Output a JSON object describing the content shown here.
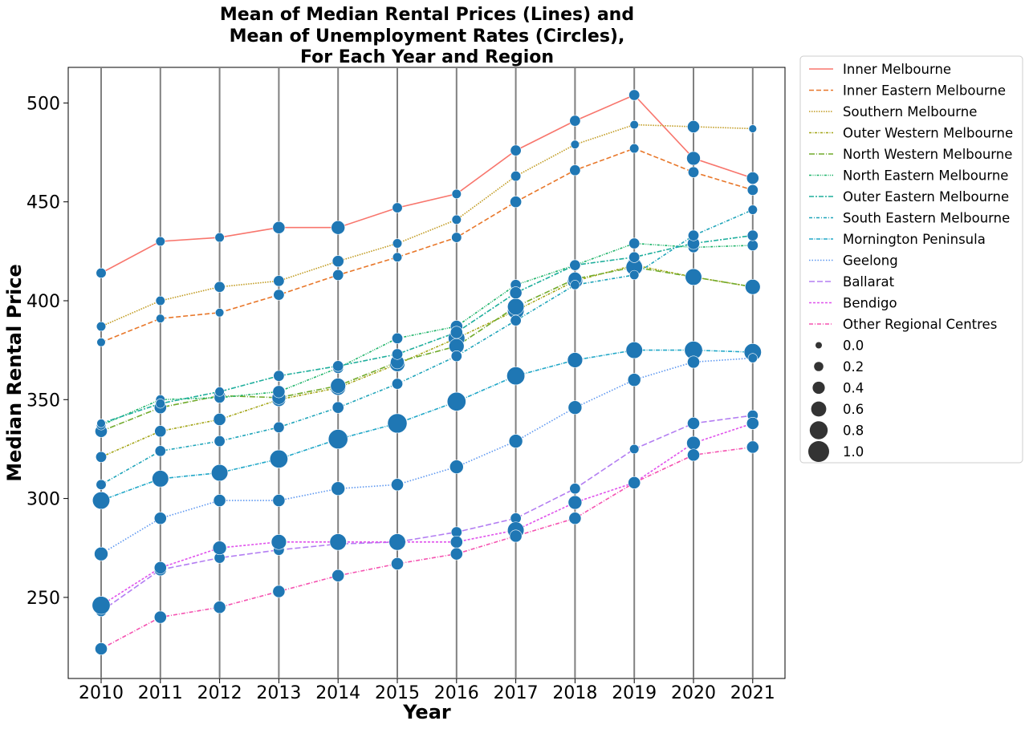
{
  "chart_data": {
    "type": "line",
    "title_lines": [
      "Mean of Median Rental Prices (Lines) and",
      "Mean of Unemployment Rates (Circles),",
      "For Each Year and Region"
    ],
    "xlabel": "Year",
    "ylabel": "Median Rental Price",
    "x": [
      2010,
      2011,
      2012,
      2013,
      2014,
      2015,
      2016,
      2017,
      2018,
      2019,
      2020,
      2021
    ],
    "x_tick_labels": [
      "2010",
      "2011",
      "2012",
      "2013",
      "2014",
      "2015",
      "2016",
      "2017",
      "2018",
      "2019",
      "2020",
      "2021"
    ],
    "y_ticks": [
      250,
      300,
      350,
      400,
      450,
      500
    ],
    "y_tick_labels": [
      "250",
      "300",
      "350",
      "400",
      "450",
      "500"
    ],
    "ylim": [
      209,
      518
    ],
    "vertical_year_gridlines": true,
    "marker_color": "#1f77b4",
    "legend_position": "outside-right",
    "series": [
      {
        "name": "Inner Melbourne",
        "color": "#f8766d",
        "dash": "none",
        "values": [
          414,
          430,
          432,
          437,
          437,
          447,
          454,
          476,
          491,
          504,
          472,
          462
        ],
        "rates": [
          0.25,
          0.2,
          0.2,
          0.4,
          0.5,
          0.25,
          0.2,
          0.3,
          0.3,
          0.3,
          0.5,
          0.4
        ]
      },
      {
        "name": "Inner Eastern Melbourne",
        "color": "#e8772a",
        "dash": "6,3",
        "values": [
          379,
          391,
          394,
          403,
          413,
          422,
          432,
          450,
          466,
          477,
          465,
          456
        ],
        "rates": [
          0.15,
          0.15,
          0.15,
          0.3,
          0.3,
          0.2,
          0.25,
          0.35,
          0.3,
          0.2,
          0.3,
          0.3
        ]
      },
      {
        "name": "Southern Melbourne",
        "color": "#c09a1f",
        "dash": "1.5,1.5",
        "values": [
          387,
          400,
          407,
          410,
          420,
          429,
          441,
          463,
          479,
          489,
          488,
          487
        ],
        "rates": [
          0.2,
          0.2,
          0.3,
          0.3,
          0.35,
          0.2,
          0.2,
          0.25,
          0.15,
          0.15,
          0.4,
          0.1
        ]
      },
      {
        "name": "Outer Western Melbourne",
        "color": "#a3a517",
        "dash": "3,1.5,1,1.5",
        "values": [
          321,
          334,
          340,
          350,
          356,
          368,
          381,
          395,
          410,
          418,
          412,
          407
        ],
        "rates": [
          0.3,
          0.35,
          0.4,
          0.5,
          0.6,
          0.6,
          0.7,
          0.7,
          0.6,
          0.6,
          0.7,
          0.6
        ]
      },
      {
        "name": "North Western Melbourne",
        "color": "#71ab2c",
        "dash": "7,2,1,2",
        "values": [
          334,
          346,
          352,
          351,
          357,
          369,
          377,
          397,
          411,
          417,
          412,
          407
        ],
        "rates": [
          0.4,
          0.4,
          0.35,
          0.5,
          0.6,
          0.5,
          0.6,
          0.7,
          0.5,
          0.7,
          0.7,
          0.6
        ]
      },
      {
        "name": "North Eastern Melbourne",
        "color": "#1fb46a",
        "dash": "3,1.5,1,1.5,1,1.5",
        "values": [
          337,
          350,
          351,
          354,
          366,
          381,
          387,
          408,
          418,
          429,
          427,
          428
        ],
        "rates": [
          0.2,
          0.2,
          0.3,
          0.4,
          0.3,
          0.3,
          0.4,
          0.3,
          0.3,
          0.3,
          0.3,
          0.3
        ]
      },
      {
        "name": "Outer Eastern Melbourne",
        "color": "#1eae9c",
        "dash": "6,2,2,2",
        "values": [
          338,
          348,
          354,
          362,
          367,
          373,
          384,
          404,
          418,
          422,
          429,
          433
        ],
        "rates": [
          0.15,
          0.2,
          0.2,
          0.3,
          0.3,
          0.3,
          0.4,
          0.4,
          0.3,
          0.3,
          0.4,
          0.3
        ]
      },
      {
        "name": "South Eastern Melbourne",
        "color": "#1ea4b9",
        "dash": "4,2,1,2",
        "values": [
          307,
          324,
          329,
          336,
          346,
          358,
          372,
          390,
          408,
          413,
          433,
          446
        ],
        "rates": [
          0.25,
          0.3,
          0.3,
          0.3,
          0.35,
          0.3,
          0.3,
          0.3,
          0.2,
          0.2,
          0.3,
          0.2
        ]
      },
      {
        "name": "Mornington Peninsula",
        "color": "#22a8c8",
        "dash": "5,1.5,1,1.5",
        "values": [
          299,
          310,
          313,
          320,
          330,
          338,
          349,
          362,
          370,
          375,
          375,
          374
        ],
        "rates": [
          0.75,
          0.7,
          0.7,
          0.8,
          0.9,
          0.9,
          0.85,
          0.8,
          0.6,
          0.7,
          0.8,
          0.75
        ]
      },
      {
        "name": "Geelong",
        "color": "#5b96f0",
        "dash": "1.5,2",
        "values": [
          272,
          290,
          299,
          299,
          305,
          307,
          316,
          329,
          346,
          360,
          369,
          371
        ],
        "rates": [
          0.5,
          0.4,
          0.4,
          0.4,
          0.5,
          0.4,
          0.5,
          0.5,
          0.5,
          0.45,
          0.4,
          0.2
        ]
      },
      {
        "name": "Ballarat",
        "color": "#b37ef2",
        "dash": "7,3",
        "values": [
          243,
          264,
          270,
          274,
          277,
          278,
          283,
          290,
          305,
          325,
          338,
          342
        ],
        "rates": [
          0.3,
          0.4,
          0.3,
          0.3,
          0.3,
          0.3,
          0.3,
          0.3,
          0.3,
          0.2,
          0.4,
          0.3
        ]
      },
      {
        "name": "Bendigo",
        "color": "#e052ec",
        "dash": "3,2",
        "values": [
          246,
          265,
          275,
          278,
          278,
          278,
          278,
          284,
          298,
          308,
          328,
          338
        ],
        "rates": [
          0.8,
          0.4,
          0.5,
          0.6,
          0.7,
          0.7,
          0.4,
          0.7,
          0.5,
          0.3,
          0.5,
          0.4
        ]
      },
      {
        "name": "Other Regional Centres",
        "color": "#f552b0",
        "dash": "5,2,1,2",
        "values": [
          224,
          240,
          245,
          253,
          261,
          267,
          272,
          281,
          290,
          308,
          322,
          326
        ],
        "rates": [
          0.4,
          0.4,
          0.4,
          0.4,
          0.4,
          0.4,
          0.4,
          0.4,
          0.4,
          0.4,
          0.4,
          0.4
        ]
      }
    ],
    "size_legend": {
      "labels": [
        "0.0",
        "0.2",
        "0.4",
        "0.6",
        "0.8",
        "1.0"
      ],
      "values": [
        0.0,
        0.2,
        0.4,
        0.6,
        0.8,
        1.0
      ],
      "color": "#333333"
    }
  }
}
